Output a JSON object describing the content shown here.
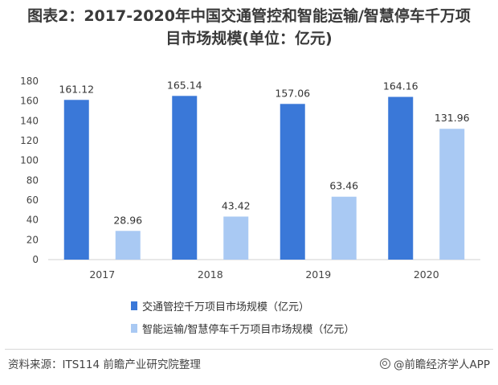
{
  "title": {
    "line1": "图表2：2017-2020年中国交通管控和智能运输/智慧停车千万项",
    "line2": "目市场规模(单位：亿元)"
  },
  "chart_data": {
    "type": "bar",
    "categories": [
      "2017",
      "2018",
      "2019",
      "2020"
    ],
    "series": [
      {
        "name": "交通管控千万项目市场规模（亿元）",
        "values": [
          161.12,
          165.14,
          157.06,
          164.16
        ],
        "color": "#3a78d8"
      },
      {
        "name": "智能运输/智慧停车千万项目市场规模（亿元）",
        "values": [
          28.96,
          43.42,
          63.46,
          131.96
        ],
        "color": "#a9c9f3"
      }
    ],
    "data_labels": [
      [
        "161.12",
        "165.14",
        "157.06",
        "164.16"
      ],
      [
        "28.96",
        "43.42",
        "63.46",
        "131.96"
      ]
    ],
    "ylim": [
      0,
      180
    ],
    "yticks": [
      "0",
      "20",
      "40",
      "60",
      "80",
      "100",
      "120",
      "140",
      "160",
      "180"
    ],
    "grid": false,
    "legend_position": "bottom-center",
    "xlabel": "",
    "ylabel": ""
  },
  "footer": {
    "source": "资料来源：ITS114 前瞻产业研究院整理",
    "brand": "@前瞻经济学人APP",
    "brand_icon": "qianzhan-logo-icon"
  }
}
